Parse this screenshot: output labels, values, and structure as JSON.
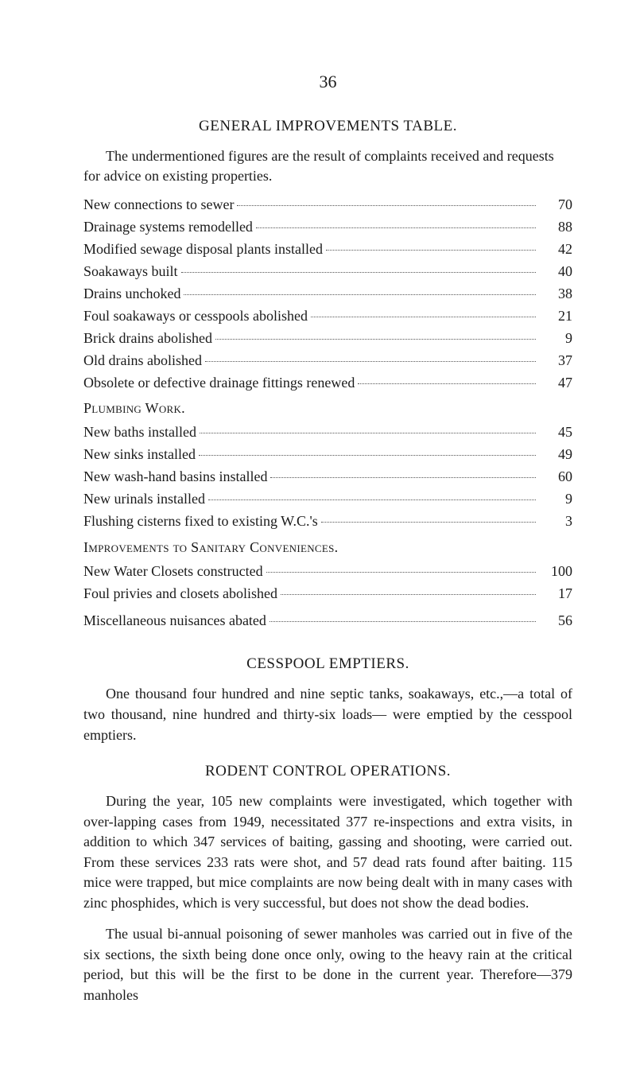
{
  "page_number": "36",
  "sections": {
    "general_improvements": {
      "title": "GENERAL IMPROVEMENTS TABLE.",
      "intro": "The undermentioned figures are the result of complaints received and requests for advice on existing properties.",
      "entries": [
        {
          "label": "New connections to sewer",
          "value": "70"
        },
        {
          "label": "Drainage systems remodelled",
          "value": "88"
        },
        {
          "label": "Modified sewage disposal plants installed",
          "value": "42"
        },
        {
          "label": "Soakaways built",
          "value": "40"
        },
        {
          "label": "Drains unchoked",
          "value": "38"
        },
        {
          "label": "Foul soakaways or cesspools abolished",
          "value": "21"
        },
        {
          "label": "Brick drains abolished",
          "value": "9"
        },
        {
          "label": "Old drains abolished",
          "value": "37"
        },
        {
          "label": "Obsolete or defective drainage fittings renewed",
          "value": "47"
        }
      ]
    },
    "plumbing_work": {
      "title": "Plumbing Work.",
      "entries": [
        {
          "label": "New baths installed",
          "value": "45"
        },
        {
          "label": "New sinks installed",
          "value": "49"
        },
        {
          "label": "New wash-hand basins installed",
          "value": "60"
        },
        {
          "label": "New urinals installed",
          "value": "9"
        },
        {
          "label": "Flushing cisterns fixed to existing W.C.'s",
          "value": "3"
        }
      ]
    },
    "improvements_sanitary": {
      "title": "Improvements to Sanitary Conveniences.",
      "entries": [
        {
          "label": "New Water Closets constructed",
          "value": "100"
        },
        {
          "label": "Foul privies and closets abolished",
          "value": "17"
        }
      ]
    },
    "misc": {
      "entries": [
        {
          "label": "Miscellaneous nuisances abated",
          "value": "56"
        }
      ]
    },
    "cesspool": {
      "title": "CESSPOOL EMPTIERS.",
      "para": "One thousand four hundred and nine septic tanks, soakaways, etc.,—a total of two thousand, nine hundred and thirty-six loads— were emptied by the cesspool emptiers."
    },
    "rodent": {
      "title": "RODENT CONTROL OPERATIONS.",
      "para1": "During the year, 105 new complaints were investigated, which together with over-lapping cases from 1949, necessitated 377 re-inspections and extra visits, in addition to which 347 services of baiting, gassing and shooting, were carried out. From these services 233 rats were shot, and 57 dead rats found after baiting. 115 mice were trapped, but mice complaints are now being dealt with in many cases with zinc phosphides, which is very successful, but does not show the dead bodies.",
      "para2": "The usual bi-annual poisoning of sewer manholes was carried out in five of the six sections, the sixth being done once only, owing to the heavy rain at the critical period, but this will be the first to be done in the current year. Therefore—379 manholes"
    }
  }
}
